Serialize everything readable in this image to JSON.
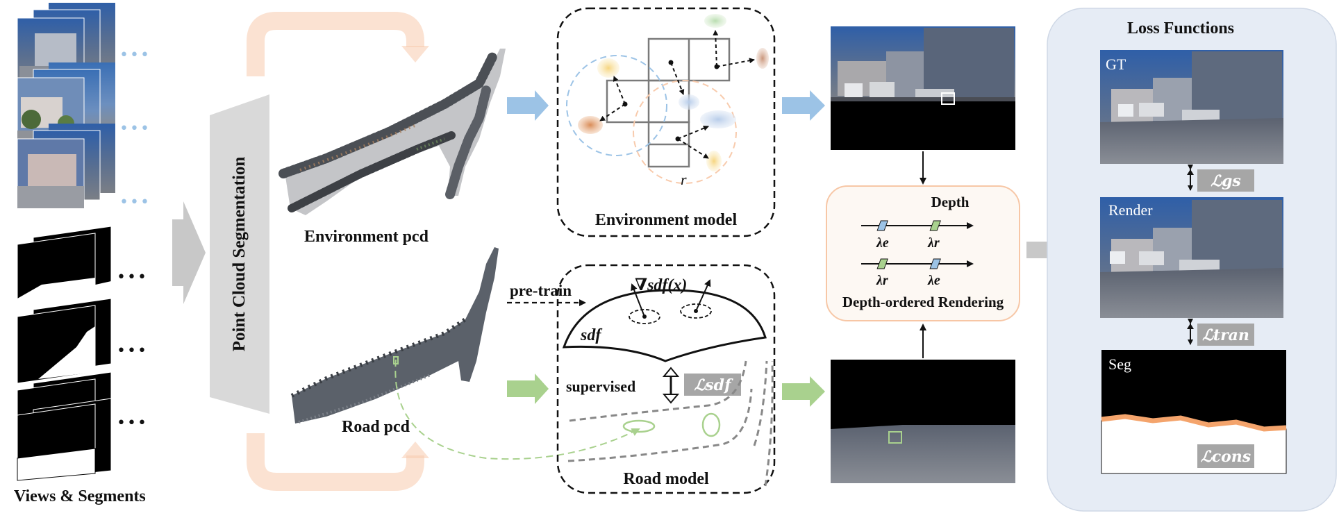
{
  "labels": {
    "views_segments": "Views & Segments",
    "point_cloud_segmentation": "Point Cloud Segmentation",
    "environment_pcd": "Environment pcd",
    "road_pcd": "Road pcd",
    "environment_model": "Environment model",
    "road_model": "Road model",
    "radius_r": "r",
    "pre_train": "pre-train",
    "grad_sdf": "∇sdf(x)",
    "sdf": "sdf",
    "supervised": "supervised",
    "loss_sdf": "ℒsdf",
    "depth": "Depth",
    "lambda_e": "λe",
    "lambda_r": "λr",
    "depth_ordered_rendering": "Depth-ordered Rendering",
    "loss_functions": "Loss Functions",
    "gt": "GT",
    "render": "Render",
    "seg": "Seg",
    "loss_gs": "ℒgs",
    "loss_tran": "ℒtran",
    "loss_cons": "ℒcons",
    "ellipsis": "•••"
  },
  "colors": {
    "blue_arrow": "#9cc3e6",
    "green_arrow": "#a9d18e",
    "peach_arrow": "#f8cbad",
    "gray_arrow": "#c8c8c8",
    "loss_panel_bg": "#e6ecf5",
    "loss_badge": "#a6a6a6",
    "depth_box_border": "#f4b183",
    "depth_box_bg": "#fdf8f3",
    "seg_orange": "#f4a46c"
  }
}
